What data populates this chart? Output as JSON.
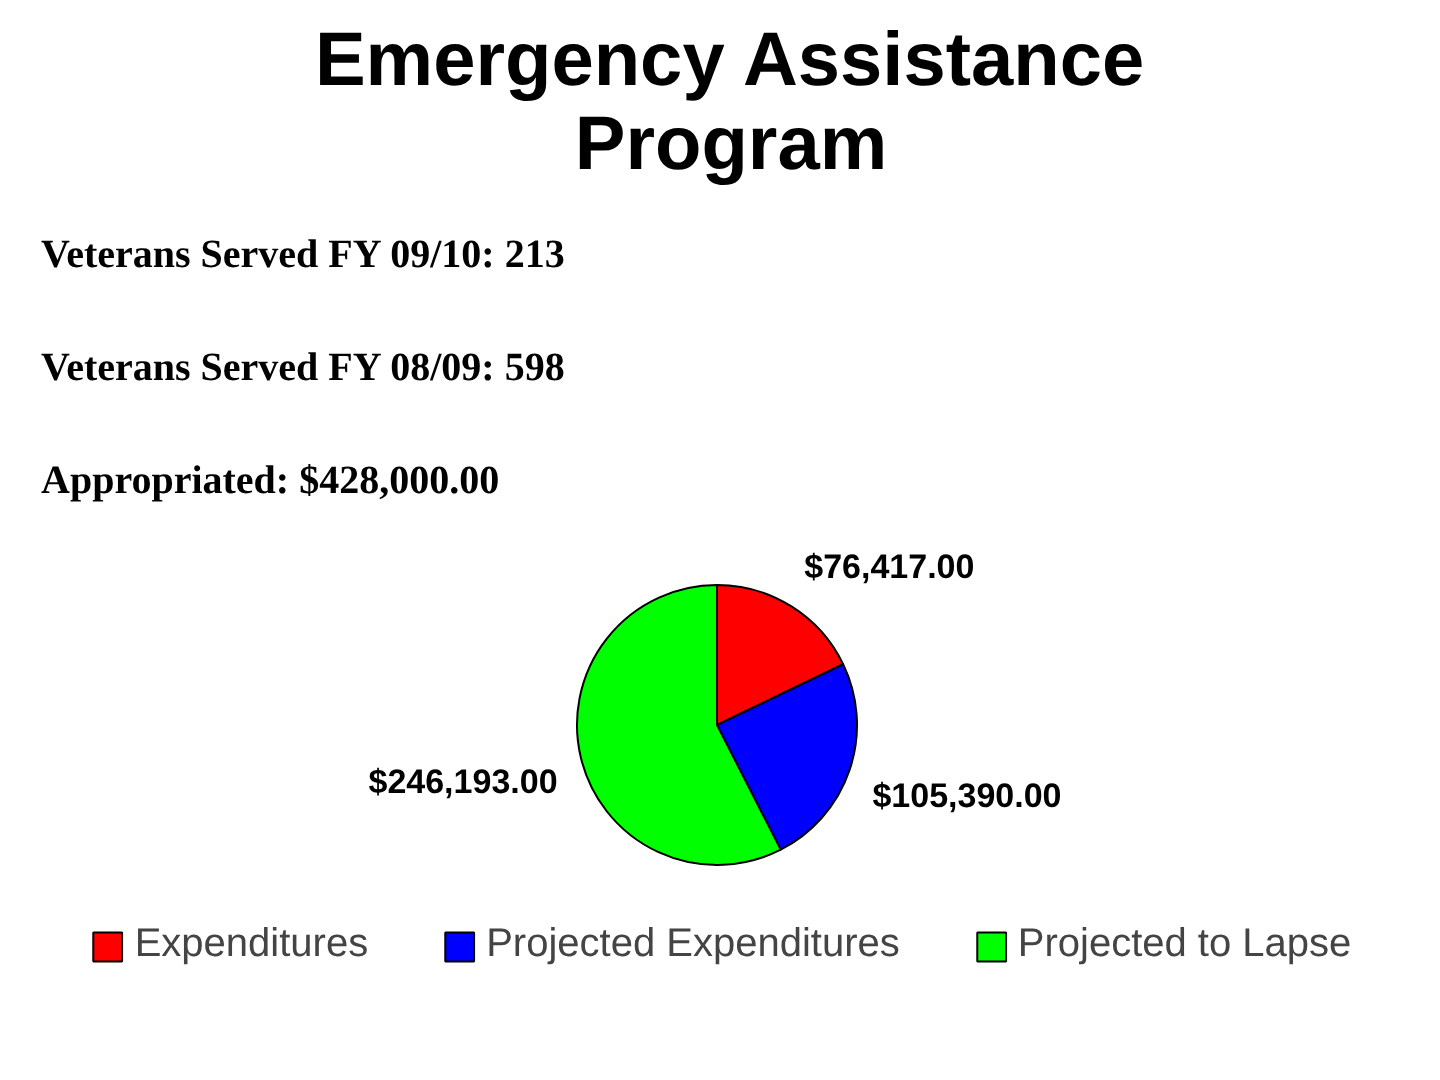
{
  "chart_data": {
    "type": "pie",
    "title": "Emergency Assistance Program",
    "annotations": [
      "Veterans Served FY 09/10: 213",
      "Veterans Served FY 08/09: 598",
      "Appropriated: $428,000.00"
    ],
    "categories": [
      "Expenditures",
      "Projected Expenditures",
      "Projected to Lapse"
    ],
    "values": [
      76417,
      105390,
      246193
    ],
    "value_labels": [
      "$76,417.00",
      "$105,390.00",
      "$246,193.00"
    ],
    "colors": [
      "#ff0000",
      "#0000ff",
      "#00ff00"
    ],
    "legend": "bottom"
  }
}
